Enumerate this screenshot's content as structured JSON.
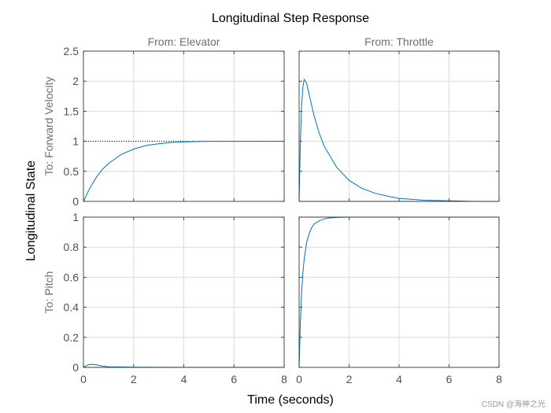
{
  "chart_data": {
    "type": "line",
    "title": "Longitudinal Step Response",
    "xlabel": "Time (seconds)",
    "ylabel": "Longitudinal State",
    "xlim": [
      0,
      8
    ],
    "x_ticks": [
      "0",
      "2",
      "4",
      "6",
      "8"
    ],
    "columns": [
      "From: Elevator",
      "From: Throttle"
    ],
    "rows": [
      "To: Forward Velocity",
      "To: Pitch"
    ],
    "row_ylim": [
      [
        0,
        2.5
      ],
      [
        0,
        1
      ]
    ],
    "row_y_ticks": [
      [
        "0",
        "0.5",
        "1",
        "1.5",
        "2",
        "2.5"
      ],
      [
        "0",
        "0.2",
        "0.4",
        "0.6",
        "0.8",
        "1"
      ]
    ],
    "series": [
      {
        "name": "Elevator to Forward Velocity",
        "steady_state": 1,
        "x": [
          0,
          0.25,
          0.5,
          0.75,
          1,
          1.5,
          2,
          2.5,
          3,
          3.5,
          4,
          5,
          6,
          7,
          8
        ],
        "y": [
          0,
          0.22,
          0.39,
          0.53,
          0.63,
          0.78,
          0.87,
          0.93,
          0.96,
          0.98,
          0.99,
          1.0,
          1.0,
          1.0,
          1.0
        ]
      },
      {
        "name": "Throttle to Forward Velocity",
        "steady_state": 0,
        "x": [
          0,
          0.05,
          0.1,
          0.15,
          0.2,
          0.3,
          0.4,
          0.6,
          0.8,
          1,
          1.5,
          2,
          2.5,
          3,
          3.5,
          4,
          5,
          6,
          7,
          8
        ],
        "y": [
          0,
          1.0,
          1.6,
          1.9,
          2.03,
          1.97,
          1.78,
          1.42,
          1.14,
          0.92,
          0.57,
          0.35,
          0.22,
          0.14,
          0.09,
          0.05,
          0.02,
          0.01,
          0.0,
          0.0
        ]
      },
      {
        "name": "Elevator to Pitch",
        "steady_state": 0,
        "x": [
          0,
          0.1,
          0.2,
          0.35,
          0.5,
          0.7,
          1,
          2,
          4,
          6,
          8
        ],
        "y": [
          0,
          0.01,
          0.018,
          0.02,
          0.018,
          0.01,
          0.004,
          0.001,
          0,
          0,
          0
        ]
      },
      {
        "name": "Throttle to Pitch",
        "steady_state": 1,
        "x": [
          0,
          0.05,
          0.1,
          0.15,
          0.2,
          0.3,
          0.4,
          0.5,
          0.6,
          0.8,
          1.0,
          1.2,
          1.5,
          2,
          3,
          4,
          6,
          8
        ],
        "y": [
          0,
          0.3,
          0.5,
          0.63,
          0.72,
          0.83,
          0.89,
          0.93,
          0.955,
          0.975,
          0.988,
          0.994,
          0.998,
          1.0,
          1.0,
          1.0,
          1.0,
          1.0
        ]
      }
    ]
  },
  "watermark": "CSDN @海神之光"
}
